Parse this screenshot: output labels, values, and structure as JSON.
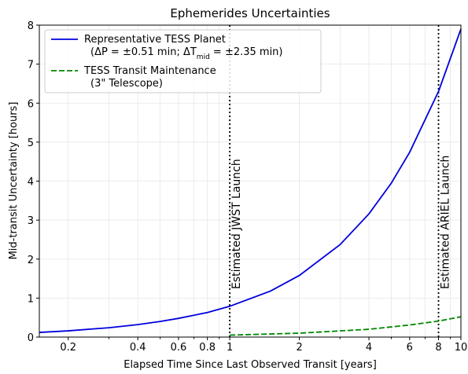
{
  "chart_data": {
    "type": "line",
    "title": "Ephemerides Uncertainties",
    "xlabel": "Elapsed Time Since Last Observed Transit [years]",
    "ylabel": "Mid-transit Uncertainty [hours]",
    "xscale": "log",
    "xlim": [
      0.15,
      10
    ],
    "ylim": [
      0,
      8
    ],
    "xticks": [
      0.2,
      0.4,
      0.6,
      0.8,
      1,
      2,
      4,
      6,
      8,
      10
    ],
    "xminor": [
      0.3,
      0.5,
      0.7,
      0.9,
      3,
      5,
      7,
      9
    ],
    "yticks": [
      0,
      1,
      2,
      3,
      4,
      5,
      6,
      7,
      8
    ],
    "grid": true,
    "legend": "upper left",
    "series": [
      {
        "name": "Representative TESS Planet",
        "detail": [
          "(ΔP = ±0.51 min; ΔT",
          "mid",
          " = ±2.35 min)"
        ],
        "color": "#0000dd",
        "dash": "solid",
        "x": [
          0.15,
          0.2,
          0.3,
          0.4,
          0.5,
          0.6,
          0.8,
          1,
          1.5,
          2,
          3,
          4,
          5,
          6,
          8,
          10
        ],
        "values": [
          0.12,
          0.16,
          0.24,
          0.32,
          0.4,
          0.48,
          0.63,
          0.79,
          1.18,
          1.58,
          2.37,
          3.16,
          3.95,
          4.74,
          6.3,
          7.9
        ]
      },
      {
        "name": "TESS Transit Maintenance",
        "detail": [
          "(3\" Telescope)"
        ],
        "color": "#008800",
        "dash": "dashed",
        "x": [
          1,
          2,
          4,
          6,
          8,
          10
        ],
        "values": [
          0.05,
          0.1,
          0.2,
          0.31,
          0.41,
          0.52
        ]
      }
    ],
    "annotations": [
      {
        "x": 1,
        "label": "Estimated JWST Launch"
      },
      {
        "x": 8,
        "label": "Estimated ARIEL Launch"
      }
    ]
  }
}
